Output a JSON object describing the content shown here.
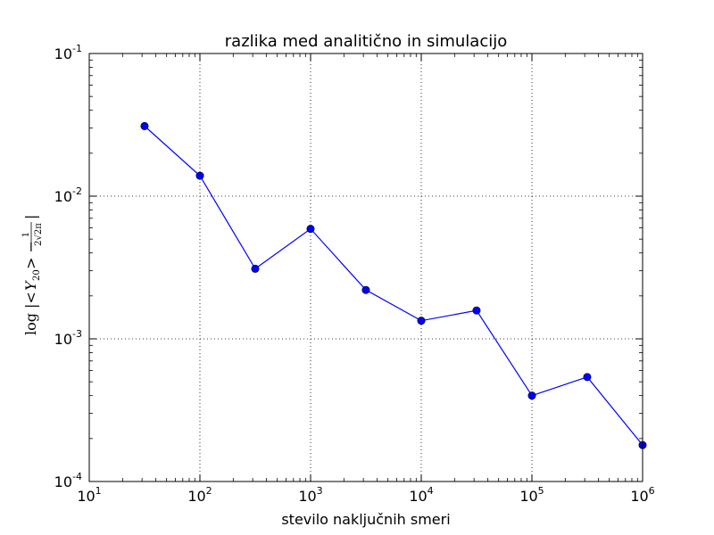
{
  "chart_data": {
    "type": "line",
    "title": "razlika med analitično in simulacijo",
    "xlabel": "stevilo naključnih smeri",
    "ylabel": {
      "prefix": "log",
      "term": "Y",
      "subscript": "20",
      "numerator": "1",
      "denominator": "2√2π"
    },
    "xscale": "log",
    "yscale": "log",
    "xlim": [
      10,
      1000000
    ],
    "ylim": [
      0.0001,
      0.1
    ],
    "grid": true,
    "x_ticks": [
      {
        "base": "10",
        "exp": "1"
      },
      {
        "base": "10",
        "exp": "2"
      },
      {
        "base": "10",
        "exp": "3"
      },
      {
        "base": "10",
        "exp": "4"
      },
      {
        "base": "10",
        "exp": "5"
      },
      {
        "base": "10",
        "exp": "6"
      }
    ],
    "y_ticks": [
      {
        "base": "10",
        "exp": "-4"
      },
      {
        "base": "10",
        "exp": "-3"
      },
      {
        "base": "10",
        "exp": "-2"
      },
      {
        "base": "10",
        "exp": "-1"
      }
    ],
    "series": [
      {
        "color": "#0000ff",
        "marker": "circle",
        "x": [
          31.6,
          100,
          316,
          1000,
          3160,
          10000,
          31600,
          100000,
          316000,
          1000000
        ],
        "y": [
          0.031,
          0.0139,
          0.0031,
          0.0059,
          0.0022,
          0.00134,
          0.00158,
          0.0004,
          0.00054,
          0.00018
        ]
      }
    ]
  }
}
